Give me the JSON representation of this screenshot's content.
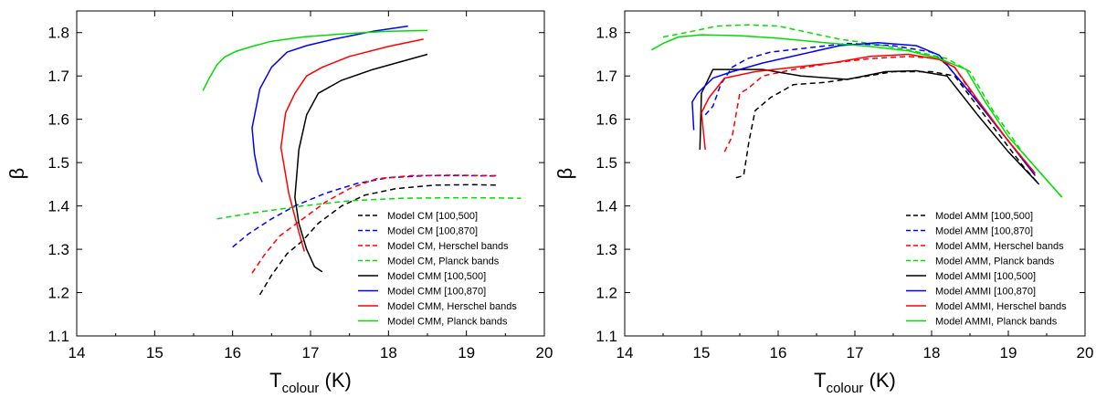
{
  "chart_data": [
    {
      "type": "line",
      "xlabel": "T",
      "xlabel_sub": "colour",
      "xlabel_unit": " (K)",
      "ylabel": "β",
      "xlim": [
        14,
        20
      ],
      "ylim": [
        1.1,
        1.85
      ],
      "xticks": [
        14,
        15,
        16,
        17,
        18,
        19,
        20
      ],
      "yticks": [
        1.1,
        1.2,
        1.3,
        1.4,
        1.5,
        1.6,
        1.7,
        1.8
      ],
      "legend_position": "bottom-right",
      "series": [
        {
          "name": "Model CM [100,500]",
          "color": "#000000",
          "dash": true,
          "x": [
            16.35,
            16.5,
            16.7,
            16.9,
            17.1,
            17.4,
            17.7,
            18.1,
            18.6,
            19.1,
            19.4
          ],
          "y": [
            1.195,
            1.24,
            1.29,
            1.32,
            1.36,
            1.4,
            1.425,
            1.44,
            1.448,
            1.449,
            1.448
          ]
        },
        {
          "name": "Model CM [100,870]",
          "color": "#0000ff",
          "dash": true,
          "x": [
            16.0,
            16.2,
            16.5,
            16.8,
            17.2,
            17.6,
            18.0,
            18.5,
            19.0,
            19.4
          ],
          "y": [
            1.305,
            1.335,
            1.37,
            1.4,
            1.43,
            1.452,
            1.465,
            1.47,
            1.47,
            1.469
          ]
        },
        {
          "name": "Model CM, Herschel bands",
          "color": "#ff0000",
          "dash": true,
          "x": [
            16.25,
            16.4,
            16.6,
            16.9,
            17.2,
            17.5,
            17.85,
            18.3,
            18.8,
            19.4
          ],
          "y": [
            1.245,
            1.285,
            1.33,
            1.37,
            1.41,
            1.44,
            1.463,
            1.47,
            1.471,
            1.47
          ]
        },
        {
          "name": "Model CM, Planck bands",
          "color": "#00dd00",
          "dash": true,
          "x": [
            15.8,
            16.3,
            16.9,
            17.5,
            18.2,
            19.0,
            19.7
          ],
          "y": [
            1.37,
            1.385,
            1.4,
            1.412,
            1.418,
            1.419,
            1.418
          ]
        },
        {
          "name": "Model CMM [100,500]",
          "color": "#000000",
          "dash": false,
          "x": [
            18.5,
            18.2,
            17.8,
            17.4,
            17.1,
            16.95,
            16.85,
            16.8,
            16.85,
            16.95,
            17.05,
            17.15
          ],
          "y": [
            1.75,
            1.735,
            1.715,
            1.69,
            1.66,
            1.61,
            1.53,
            1.42,
            1.36,
            1.3,
            1.26,
            1.248
          ]
        },
        {
          "name": "Model CMM [100,870]",
          "color": "#0000ff",
          "dash": false,
          "x": [
            18.25,
            17.8,
            17.3,
            16.95,
            16.7,
            16.5,
            16.35,
            16.25,
            16.28,
            16.33,
            16.38
          ],
          "y": [
            1.815,
            1.803,
            1.785,
            1.77,
            1.755,
            1.72,
            1.67,
            1.58,
            1.52,
            1.475,
            1.455
          ]
        },
        {
          "name": "Model CMM, Herschel bands",
          "color": "#ff0000",
          "dash": false,
          "x": [
            18.45,
            18.0,
            17.5,
            17.15,
            16.95,
            16.8,
            16.68,
            16.62,
            16.72,
            16.85,
            16.92
          ],
          "y": [
            1.785,
            1.768,
            1.745,
            1.72,
            1.7,
            1.66,
            1.615,
            1.535,
            1.43,
            1.34,
            1.295
          ]
        },
        {
          "name": "Model CMM, Planck bands",
          "color": "#00dd00",
          "dash": false,
          "x": [
            18.5,
            18.0,
            17.4,
            16.9,
            16.5,
            16.25,
            16.05,
            15.9,
            15.8,
            15.7,
            15.62
          ],
          "y": [
            1.805,
            1.803,
            1.797,
            1.79,
            1.78,
            1.768,
            1.757,
            1.744,
            1.726,
            1.695,
            1.666
          ]
        }
      ]
    },
    {
      "type": "line",
      "xlabel": "T",
      "xlabel_sub": "colour",
      "xlabel_unit": " (K)",
      "ylabel": "β",
      "xlim": [
        14,
        20
      ],
      "ylim": [
        1.1,
        1.85
      ],
      "xticks": [
        14,
        15,
        16,
        17,
        18,
        19,
        20
      ],
      "yticks": [
        1.1,
        1.2,
        1.3,
        1.4,
        1.5,
        1.6,
        1.7,
        1.8
      ],
      "legend_position": "bottom-right",
      "series": [
        {
          "name": "Model AMM [100,500]",
          "color": "#000000",
          "dash": true,
          "x": [
            15.45,
            15.55,
            15.62,
            15.7,
            15.9,
            16.2,
            16.6,
            17.0,
            17.5,
            18.0,
            18.3,
            18.6,
            18.9,
            19.2,
            19.4
          ],
          "y": [
            1.465,
            1.47,
            1.55,
            1.62,
            1.65,
            1.68,
            1.685,
            1.695,
            1.71,
            1.71,
            1.7,
            1.63,
            1.56,
            1.49,
            1.45
          ]
        },
        {
          "name": "Model AMM [100,870]",
          "color": "#0000ff",
          "dash": true,
          "x": [
            15.05,
            15.15,
            15.25,
            15.4,
            15.6,
            15.9,
            16.4,
            16.9,
            17.5,
            18.0,
            18.2,
            18.6,
            19.0,
            19.35
          ],
          "y": [
            1.61,
            1.63,
            1.68,
            1.72,
            1.74,
            1.755,
            1.765,
            1.775,
            1.77,
            1.755,
            1.725,
            1.64,
            1.55,
            1.475
          ]
        },
        {
          "name": "Model AMM, Herschel bands",
          "color": "#ff0000",
          "dash": true,
          "x": [
            15.3,
            15.4,
            15.5,
            15.6,
            15.8,
            16.2,
            16.7,
            17.2,
            17.7,
            18.1,
            18.3,
            18.6,
            19.0,
            19.35
          ],
          "y": [
            1.525,
            1.56,
            1.66,
            1.67,
            1.7,
            1.715,
            1.73,
            1.74,
            1.745,
            1.74,
            1.72,
            1.64,
            1.55,
            1.475
          ]
        },
        {
          "name": "Model AMM, Planck bands",
          "color": "#00dd00",
          "dash": true,
          "x": [
            14.5,
            14.8,
            15.2,
            15.6,
            16.0,
            16.4,
            16.8,
            17.2,
            17.7,
            18.2,
            18.5,
            18.8,
            19.2,
            19.7
          ],
          "y": [
            1.79,
            1.8,
            1.815,
            1.818,
            1.815,
            1.8,
            1.785,
            1.775,
            1.76,
            1.74,
            1.71,
            1.62,
            1.52,
            1.42
          ]
        },
        {
          "name": "Model AMMI [100,500]",
          "color": "#000000",
          "dash": false,
          "x": [
            14.98,
            15.0,
            15.15,
            15.4,
            15.8,
            16.3,
            16.9,
            17.4,
            17.8,
            18.2,
            18.6,
            19.0,
            19.4
          ],
          "y": [
            1.53,
            1.66,
            1.715,
            1.715,
            1.715,
            1.7,
            1.692,
            1.71,
            1.712,
            1.7,
            1.61,
            1.525,
            1.45
          ]
        },
        {
          "name": "Model AMMI [100,870]",
          "color": "#0000ff",
          "dash": false,
          "x": [
            14.9,
            14.88,
            14.95,
            15.15,
            15.4,
            15.8,
            16.3,
            16.8,
            17.3,
            17.8,
            18.1,
            18.25,
            18.6,
            19.0,
            19.35
          ],
          "y": [
            1.575,
            1.64,
            1.66,
            1.695,
            1.71,
            1.73,
            1.75,
            1.77,
            1.777,
            1.77,
            1.748,
            1.715,
            1.64,
            1.55,
            1.47
          ]
        },
        {
          "name": "Model AMMI, Herschel bands",
          "color": "#ff0000",
          "dash": false,
          "x": [
            15.05,
            15.0,
            15.1,
            15.3,
            15.7,
            16.2,
            16.7,
            17.2,
            17.7,
            18.1,
            18.3,
            18.6,
            19.0,
            19.35
          ],
          "y": [
            1.53,
            1.615,
            1.65,
            1.695,
            1.71,
            1.72,
            1.73,
            1.745,
            1.75,
            1.738,
            1.72,
            1.645,
            1.55,
            1.475
          ]
        },
        {
          "name": "Model AMMI, Planck bands",
          "color": "#00dd00",
          "dash": false,
          "x": [
            14.35,
            14.5,
            14.7,
            15.0,
            15.5,
            16.0,
            16.6,
            17.2,
            17.7,
            18.1,
            18.45,
            18.7,
            19.0,
            19.4,
            19.7
          ],
          "y": [
            1.76,
            1.775,
            1.79,
            1.795,
            1.793,
            1.787,
            1.777,
            1.768,
            1.758,
            1.74,
            1.715,
            1.64,
            1.56,
            1.48,
            1.42
          ]
        }
      ]
    }
  ]
}
